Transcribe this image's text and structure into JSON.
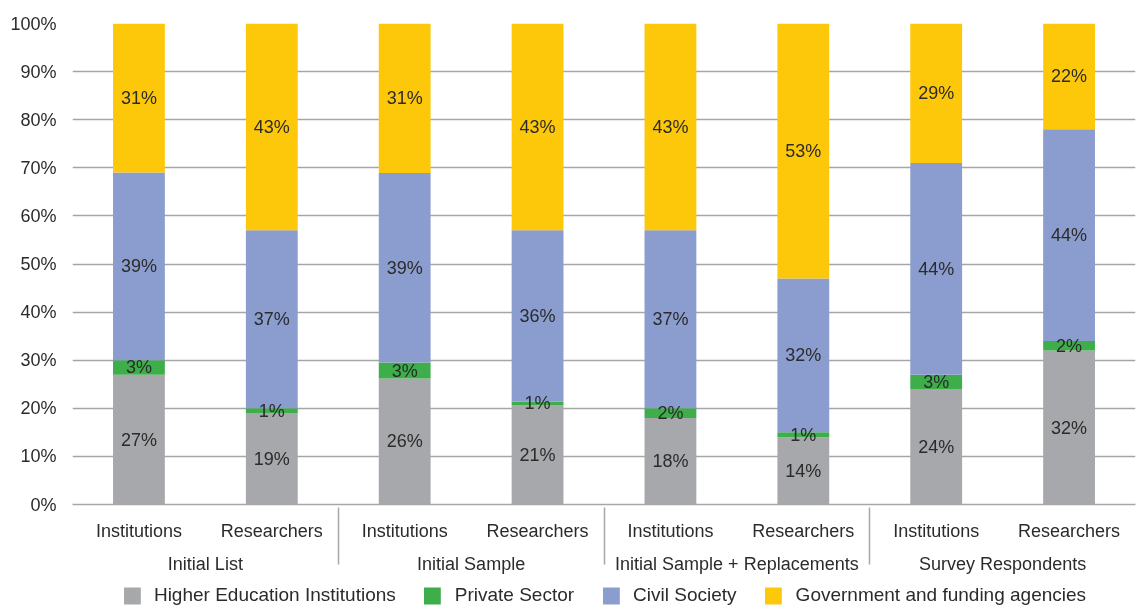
{
  "chart_data": {
    "type": "bar",
    "stacked": true,
    "categories": [
      [
        "Initial List",
        "Institutions"
      ],
      [
        null,
        "Researchers"
      ],
      [
        "Initial Sample",
        "Institutions"
      ],
      [
        null,
        "Researchers"
      ],
      [
        "Initial Sample + Replacements",
        "Institutions"
      ],
      [
        null,
        "Researchers"
      ],
      [
        "Survey Respondents",
        "Institutions"
      ],
      [
        null,
        "Researchers"
      ]
    ],
    "series": [
      {
        "name": "Higher Education Institutions",
        "color": "#a7a8ab",
        "values": [
          27,
          19,
          26.2,
          20.6,
          18,
          14,
          24,
          32
        ],
        "value_labels": [
          "27%",
          "19%",
          "26%",
          "21%",
          "18%",
          "14%",
          "24%",
          "32%"
        ]
      },
      {
        "name": "Private Sector",
        "color": "#3eae4a",
        "values": [
          3,
          1,
          3.3,
          0.8,
          2,
          1,
          3,
          2
        ],
        "value_labels": [
          "3%",
          "1%",
          "3%",
          "1%",
          "2%",
          "1%",
          "3%",
          "2%"
        ]
      },
      {
        "name": "Civil Society",
        "color": "#8b9dce",
        "values": [
          39,
          37,
          39.4,
          35.6,
          37,
          32,
          44,
          44
        ],
        "value_labels": [
          "39%",
          "37%",
          "39%",
          "36%",
          "37%",
          "32%",
          "44%",
          "44%"
        ]
      },
      {
        "name": "Government and funding agencies",
        "color": "#fec80a",
        "values": [
          31,
          43,
          31.1,
          43,
          43,
          53,
          29,
          22
        ],
        "value_labels": [
          "31%",
          "43%",
          "31%",
          "43%",
          "43%",
          "53%",
          "29%",
          "22%"
        ]
      }
    ],
    "ylim": [
      0,
      100
    ],
    "yticks": [
      {
        "value": 0,
        "label": "0%"
      },
      {
        "value": 10,
        "label": "10%"
      },
      {
        "value": 20,
        "label": "20%"
      },
      {
        "value": 30,
        "label": "30%"
      },
      {
        "value": 40,
        "label": "40%"
      },
      {
        "value": 50,
        "label": "50%"
      },
      {
        "value": 60,
        "label": "60%"
      },
      {
        "value": 70,
        "label": "70%"
      },
      {
        "value": 80,
        "label": "80%"
      },
      {
        "value": 90,
        "label": "90%"
      },
      {
        "value": 100,
        "label": "100%"
      }
    ],
    "grid": "y",
    "legend": "bottom"
  }
}
